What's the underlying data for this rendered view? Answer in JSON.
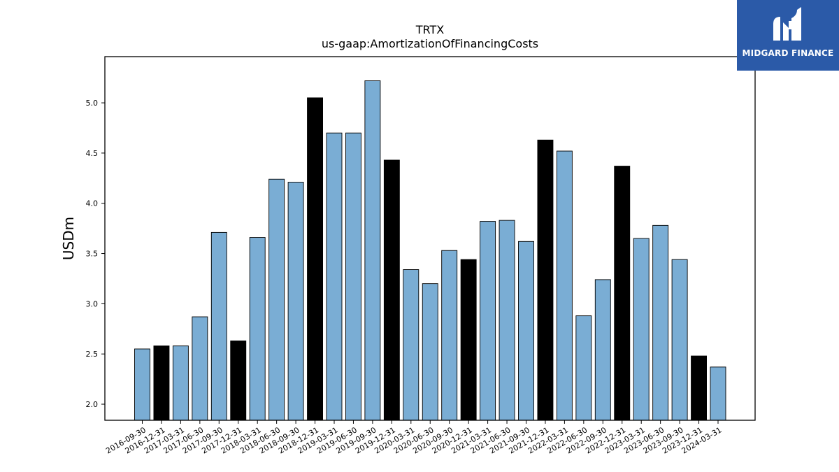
{
  "chart_data": {
    "type": "bar",
    "title": "TRTX",
    "subtitle": "us-gaap:AmortizationOfFinancingCosts",
    "xlabel": "",
    "ylabel": "USDm",
    "ylim": [
      1.84,
      5.46
    ],
    "yticks": [
      "2.0",
      "2.5",
      "3.0",
      "3.5",
      "4.0",
      "4.5",
      "5.0"
    ],
    "grid": false,
    "colors": {
      "quarter": "#7aadd4",
      "year_end": "#000000"
    },
    "categories": [
      "2016-09-30",
      "2016-12-31",
      "2017-03-31",
      "2017-06-30",
      "2017-09-30",
      "2017-12-31",
      "2018-03-31",
      "2018-06-30",
      "2018-09-30",
      "2018-12-31",
      "2019-03-31",
      "2019-06-30",
      "2019-09-30",
      "2019-12-31",
      "2020-03-31",
      "2020-06-30",
      "2020-09-30",
      "2020-12-31",
      "2021-03-31",
      "2021-06-30",
      "2021-09-30",
      "2021-12-31",
      "2022-03-31",
      "2022-06-30",
      "2022-09-30",
      "2022-12-31",
      "2023-03-31",
      "2023-06-30",
      "2023-09-30",
      "2023-12-31",
      "2024-03-31"
    ],
    "values": [
      2.55,
      2.58,
      2.58,
      2.87,
      3.71,
      2.63,
      3.66,
      4.24,
      4.21,
      5.05,
      4.7,
      4.7,
      5.22,
      4.43,
      3.34,
      3.2,
      3.53,
      3.44,
      3.82,
      3.83,
      3.62,
      4.63,
      4.52,
      2.88,
      3.24,
      4.37,
      3.65,
      3.78,
      3.44,
      2.48,
      2.37
    ],
    "highlight": [
      false,
      true,
      false,
      false,
      false,
      true,
      false,
      false,
      false,
      true,
      false,
      false,
      false,
      true,
      false,
      false,
      false,
      true,
      false,
      false,
      false,
      true,
      false,
      false,
      false,
      true,
      false,
      false,
      false,
      true,
      false
    ]
  },
  "logo": {
    "text": "MIDGARD FINANCE"
  }
}
